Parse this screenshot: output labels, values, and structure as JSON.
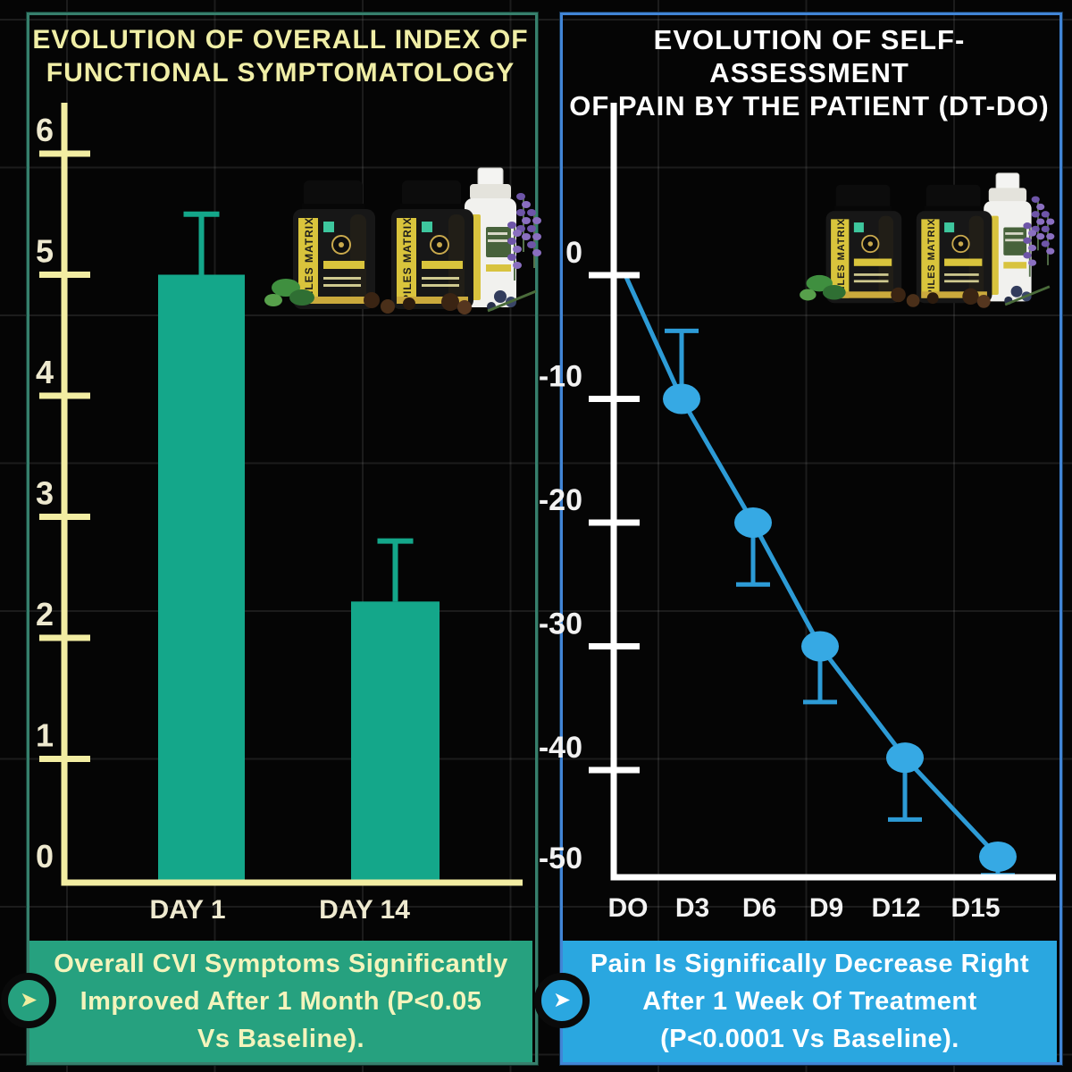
{
  "page": {
    "background": "#050505",
    "grid_color": "rgba(255,255,255,0.09)"
  },
  "left_panel": {
    "title_lines": [
      "EVOLUTION OF OVERALL INDEX OF",
      "FUNCTIONAL SYMPTOMATOLOGY"
    ],
    "colors": {
      "border": "#377f6c",
      "axis": "#f2eda2",
      "bar": "#14a78a",
      "title": "#f0eea6",
      "tick_label": "#eee9cf"
    },
    "banner": {
      "lines": [
        "Overall CVI Symptoms Significantly",
        "Improved After 1 Month (P<0.05",
        "Vs Baseline)."
      ],
      "bg": "#26a17f",
      "text_color": "#f4f4bc",
      "arrow": "➤"
    }
  },
  "right_panel": {
    "title_lines": [
      "EVOLUTION OF SELF-ASSESSMENT",
      "OF PAIN BY THE PATIENT (DT-DO)"
    ],
    "colors": {
      "border": "#4185d6",
      "axis": "#ffffff",
      "line": "#2d9bd6",
      "marker": "#36a9e4",
      "title": "#ffffff",
      "tick_label": "#f2f2f2"
    },
    "banner": {
      "lines": [
        "Pain Is Significally Decrease Right",
        "After 1 Week Of Treatment",
        "(P<0.0001 Vs Baseline)."
      ],
      "bg": "#2aa7e0",
      "text_color": "#ffffff",
      "arrow": "➤"
    }
  },
  "products": {
    "label": "PILES MATRIX"
  },
  "chart_data": [
    {
      "type": "bar",
      "title": "EVOLUTION OF OVERALL INDEX OF FUNCTIONAL SYMPTOMATOLOGY",
      "categories": [
        "DAY 1",
        "DAY 14"
      ],
      "values": [
        5.0,
        2.3
      ],
      "error_top": [
        5.5,
        2.8
      ],
      "yticks": [
        0,
        1,
        2,
        3,
        4,
        5,
        6
      ],
      "ylim": [
        0,
        6.4
      ],
      "xlabel": "",
      "ylabel": "",
      "grid": true,
      "bar_color": "#14a78a",
      "axis_color": "#f2eda2"
    },
    {
      "type": "line",
      "title": "EVOLUTION OF SELF-ASSESSMENT OF PAIN BY THE PATIENT (DT-DO)",
      "categories": [
        "DO",
        "D3",
        "D6",
        "D9",
        "D12",
        "D15"
      ],
      "values": [
        0,
        -10,
        -20,
        -30,
        -39,
        -47
      ],
      "error_to": [
        null,
        -4.5,
        -25,
        -34.5,
        -44,
        -48.5
      ],
      "markers": [
        false,
        true,
        true,
        true,
        true,
        true
      ],
      "yticks": [
        0,
        -10,
        -20,
        -30,
        -40,
        -50
      ],
      "ylim": [
        -50,
        0
      ],
      "xlabel": "",
      "ylabel": "",
      "grid": true,
      "line_color": "#2d9bd6",
      "axis_color": "#ffffff"
    }
  ]
}
